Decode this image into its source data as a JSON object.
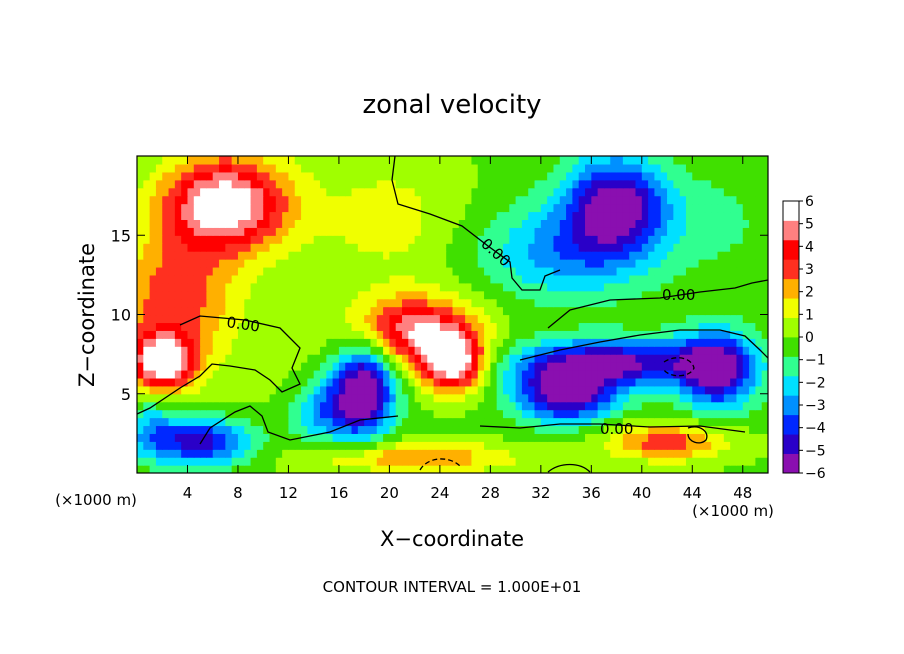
{
  "chart_data": {
    "type": "heatmap",
    "title": "zonal velocity",
    "xlabel": "X−coordinate",
    "ylabel": "Z−coordinate",
    "x_unit_left": "(×1000 m)",
    "x_unit_right": "(×1000 m)",
    "xlim": [
      0,
      50
    ],
    "ylim": [
      0,
      20
    ],
    "x_ticks": [
      4,
      8,
      12,
      16,
      20,
      24,
      28,
      32,
      36,
      40,
      44,
      48
    ],
    "y_ticks": [
      5,
      10,
      15
    ],
    "colorbar": {
      "min": -6,
      "max": 6,
      "ticks": [
        "6",
        "5",
        "4",
        "3",
        "2",
        "1",
        "0",
        "−1",
        "−2",
        "−3",
        "−4",
        "−5",
        "−6"
      ],
      "colors": [
        "#8a0fb0",
        "#2a00c8",
        "#0028ff",
        "#0090ff",
        "#00e0ff",
        "#30ff90",
        "#40e000",
        "#a0ff00",
        "#f0ff00",
        "#ffb000",
        "#ff3020",
        "#ff0000",
        "#ff8080",
        "#ffffff"
      ]
    },
    "contour_labels": [
      "0.00",
      "0.00",
      "0.00",
      "0.00"
    ],
    "contour_interval_text": "CONTOUR INTERVAL = 1.000E+01",
    "features": [
      {
        "x": 7,
        "z": 17,
        "u": 6.8,
        "sx": 5,
        "sz": 3
      },
      {
        "x": 3,
        "z": 11,
        "u": 3.5,
        "sx": 5,
        "sz": 4
      },
      {
        "x": 22,
        "z": 9,
        "u": 5.5,
        "sx": 5,
        "sz": 2.2
      },
      {
        "x": 25,
        "z": 7,
        "u": 6.5,
        "sx": 2.5,
        "sz": 1.8
      },
      {
        "x": 2,
        "z": 7,
        "u": 6.5,
        "sx": 2.5,
        "sz": 1.8
      },
      {
        "x": 18,
        "z": 5.5,
        "u": -6.5,
        "sx": 2.5,
        "sz": 3
      },
      {
        "x": 34,
        "z": 5,
        "u": -6,
        "sx": 4,
        "sz": 1.8
      },
      {
        "x": 38,
        "z": 7,
        "u": -5.5,
        "sx": 8,
        "sz": 1.5
      },
      {
        "x": 46,
        "z": 6.5,
        "u": -5.5,
        "sx": 3,
        "sz": 2.5
      },
      {
        "x": 5,
        "z": 2,
        "u": -5,
        "sx": 4,
        "sz": 1.5
      },
      {
        "x": 15,
        "z": 4,
        "u": -3,
        "sx": 3,
        "sz": 2
      },
      {
        "x": 38,
        "z": 17,
        "u": -6,
        "sx": 4,
        "sz": 3
      },
      {
        "x": 34,
        "z": 14,
        "u": -3,
        "sx": 7,
        "sz": 3
      },
      {
        "x": 46,
        "z": 16,
        "u": -1,
        "sx": 4,
        "sz": 3
      },
      {
        "x": 20,
        "z": 16,
        "u": 1.5,
        "sx": 6,
        "sz": 4
      },
      {
        "x": 12,
        "z": 6,
        "u": 0.5,
        "sx": 6,
        "sz": 3
      },
      {
        "x": 22,
        "z": 1,
        "u": 3,
        "sx": 8,
        "sz": 1
      },
      {
        "x": 42,
        "z": 2,
        "u": 3.5,
        "sx": 5,
        "sz": 1.2
      },
      {
        "x": 1,
        "z": 3,
        "u": -2,
        "sx": 2,
        "sz": 2
      }
    ]
  }
}
